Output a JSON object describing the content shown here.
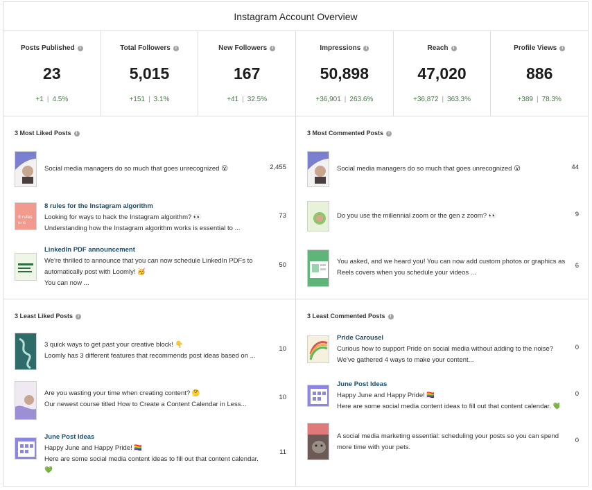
{
  "title": "Instagram Account Overview",
  "stats": [
    {
      "label": "Posts Published",
      "value": "23",
      "delta": "+1",
      "pct": "4.5%"
    },
    {
      "label": "Total Followers",
      "value": "5,015",
      "delta": "+151",
      "pct": "3.1%"
    },
    {
      "label": "New Followers",
      "value": "167",
      "delta": "+41",
      "pct": "32.5%"
    },
    {
      "label": "Impressions",
      "value": "50,898",
      "delta": "+36,901",
      "pct": "263.6%"
    },
    {
      "label": "Reach",
      "value": "47,020",
      "delta": "+36,872",
      "pct": "363.3%"
    },
    {
      "label": "Profile Views",
      "value": "886",
      "delta": "+389",
      "pct": "78.3%"
    }
  ],
  "panels": {
    "most_liked": {
      "title": "3 Most Liked Posts",
      "posts": [
        {
          "title": "",
          "lines": [
            "Social media managers do so much that goes unrecognized 😮"
          ],
          "count": "2,455"
        },
        {
          "title": "8 rules for the Instagram algorithm",
          "lines": [
            "Looking for ways to hack the Instagram algorithm? 👀",
            "Understanding how the Instagram algorithm works is essential to ..."
          ],
          "count": "73"
        },
        {
          "title": "LinkedIn PDF announcement",
          "lines": [
            "We're thrilled to announce that you can now schedule LinkedIn PDFs to",
            "automatically post with Loomly! 🥳",
            "You can now ..."
          ],
          "count": "50"
        }
      ]
    },
    "most_commented": {
      "title": "3 Most Commented Posts",
      "posts": [
        {
          "title": "",
          "lines": [
            "Social media managers do so much that goes unrecognized 😮"
          ],
          "count": "44"
        },
        {
          "title": "",
          "lines": [
            "Do you use the millennial zoom or the gen z zoom? 👀"
          ],
          "count": "9"
        },
        {
          "title": "",
          "lines": [
            "You asked, and we heard you! You can now add custom photos or graphics as",
            "Reels covers when you schedule your videos ..."
          ],
          "count": "6"
        }
      ]
    },
    "least_liked": {
      "title": "3 Least Liked Posts",
      "posts": [
        {
          "title": "",
          "lines": [
            "3 quick ways to get past your creative block! 👇",
            "Loomly has 3 different features that recommends post ideas based on ..."
          ],
          "count": "10"
        },
        {
          "title": "",
          "lines": [
            "Are you wasting your time when creating content? 🤔",
            "Our newest course titled How to Create a Content Calendar in Less..."
          ],
          "count": "10"
        },
        {
          "title": "June Post Ideas",
          "lines": [
            "Happy June and Happy Pride! 🏳️‍🌈",
            "Here are some social media content ideas to fill out that content calendar.",
            "💚"
          ],
          "count": "11"
        }
      ]
    },
    "least_commented": {
      "title": "3 Least Commented Posts",
      "posts": [
        {
          "title": "Pride Carousel",
          "lines": [
            "Curious how to support Pride on social media without adding to the noise?",
            "We've gathered 4 ways to make your content..."
          ],
          "count": "0"
        },
        {
          "title": "June Post Ideas",
          "lines": [
            "Happy June and Happy Pride! 🏳️‍🌈",
            "Here are some social media content ideas to fill out that content calendar. 💚"
          ],
          "count": "0"
        },
        {
          "title": "",
          "lines": [
            "A social media marketing essential: scheduling your posts so you can spend",
            "more time with your pets."
          ],
          "count": "0"
        }
      ]
    }
  },
  "colors": {
    "positive": "#3e7a3e",
    "link": "#1a4d6e",
    "border": "#dcdcdc"
  },
  "icons": {
    "info": "info-circle-icon"
  }
}
